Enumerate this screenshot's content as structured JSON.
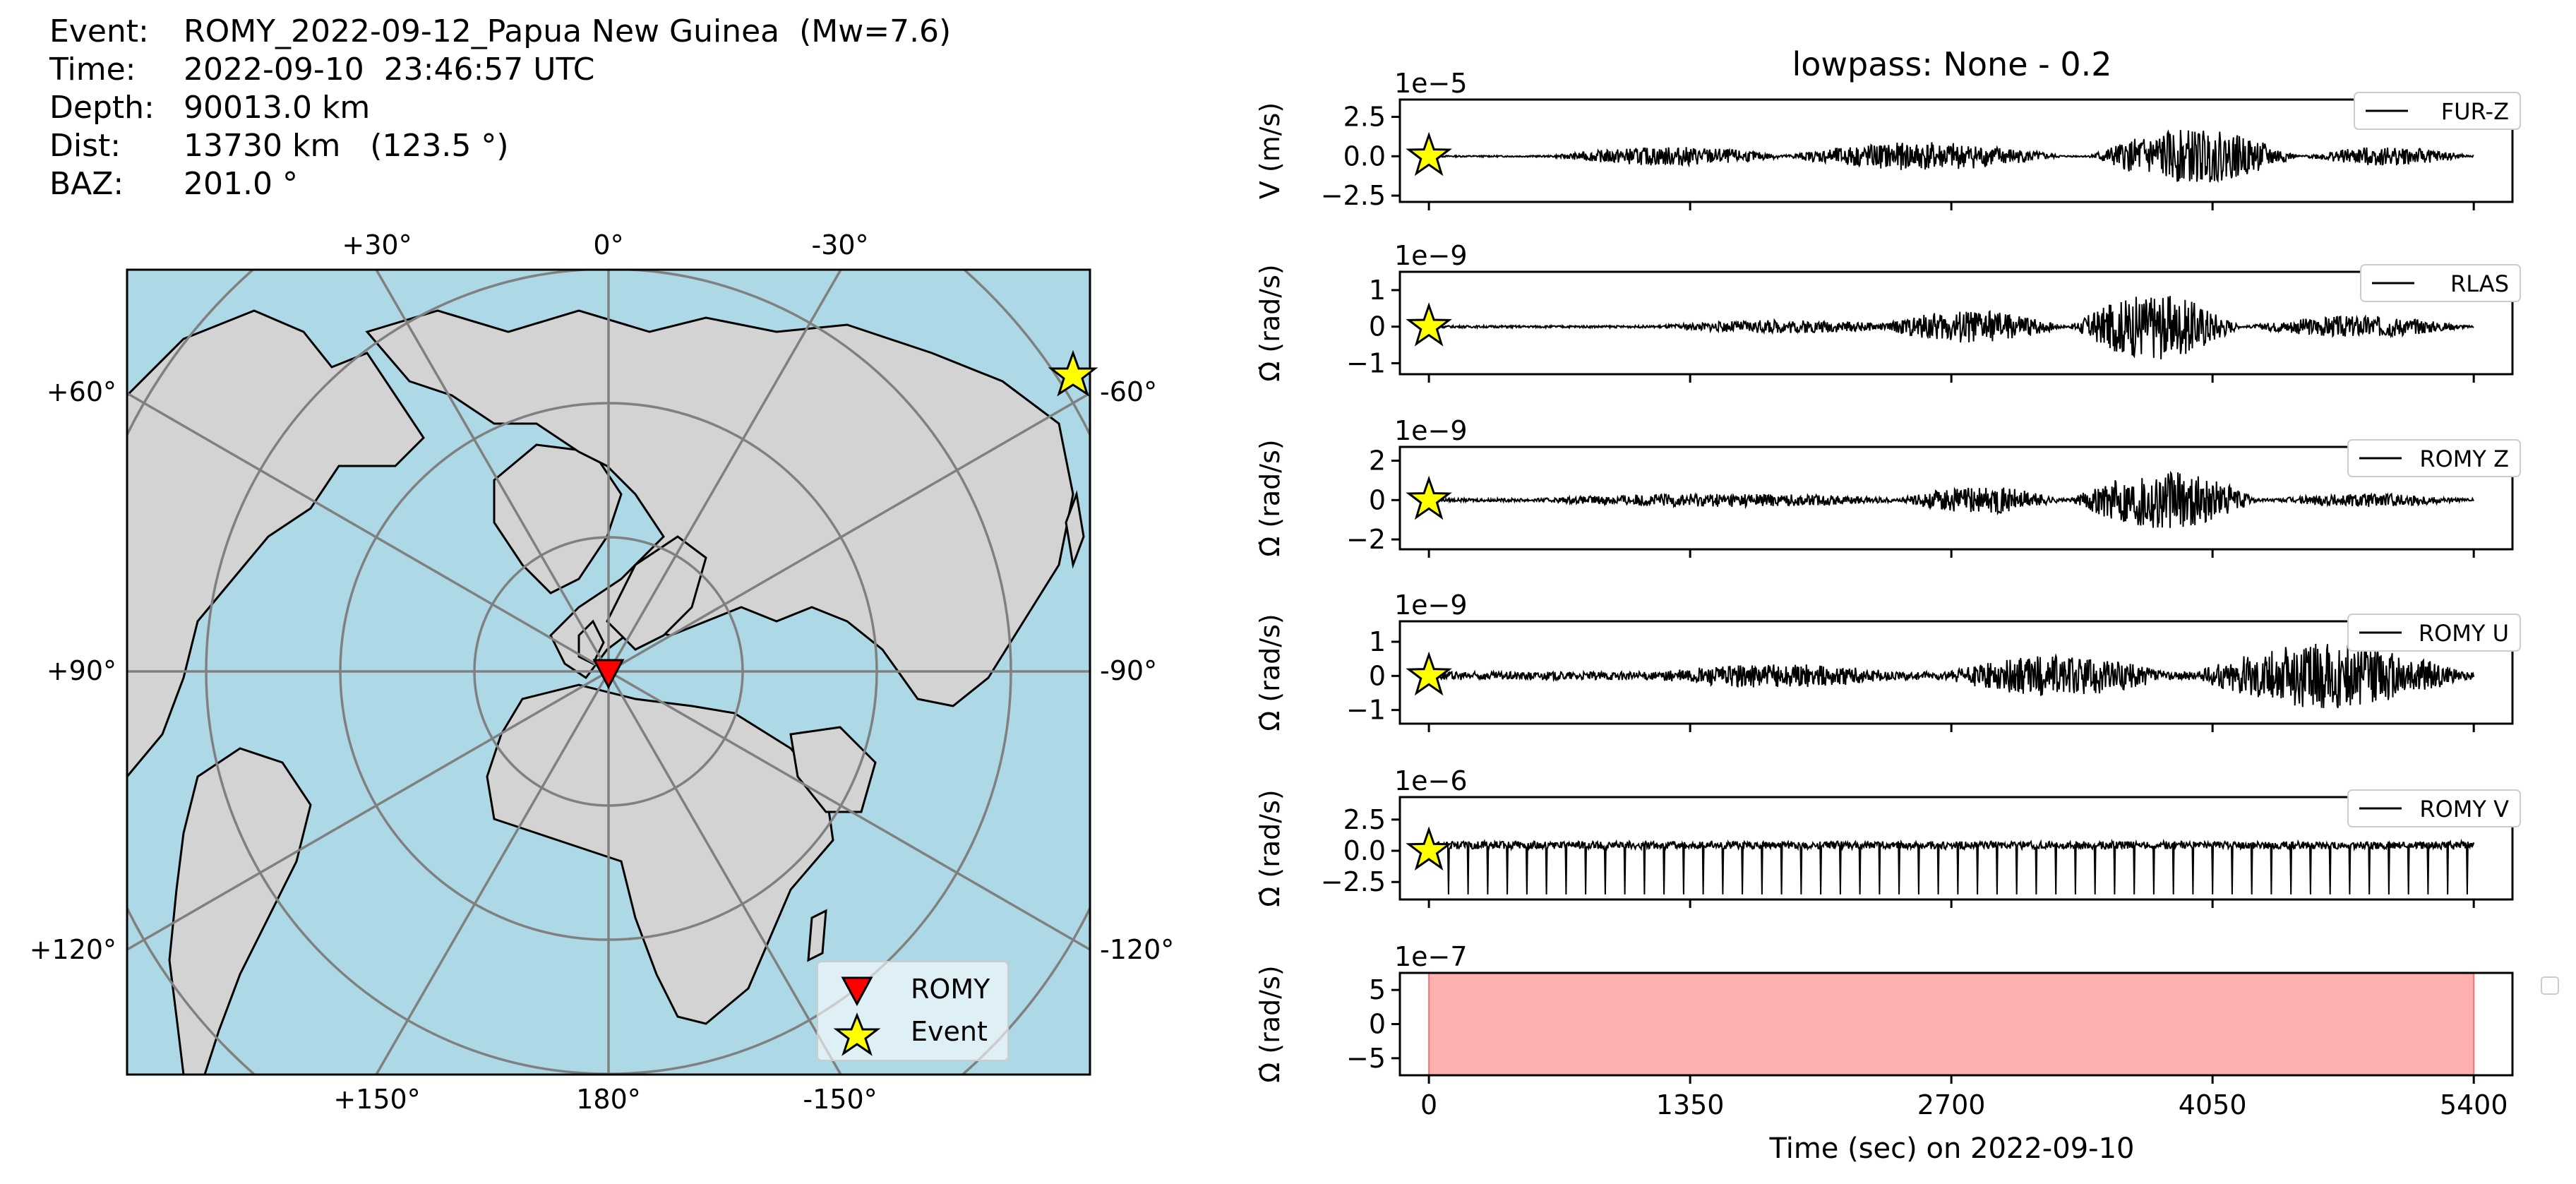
{
  "event_info": {
    "event_label": "Event:",
    "event_value": "ROMY_2022-09-12_Papua New Guinea  (Mw=7.6)",
    "time_label": "Time:",
    "time_value": "2022-09-10  23:46:57 UTC",
    "depth_label": "Depth:",
    "depth_value": "90013.0 km",
    "dist_label": "Dist:",
    "dist_value": "13730 km   (123.5 °)",
    "baz_label": "BAZ:",
    "baz_value": "201.0 °"
  },
  "map": {
    "top_labels": [
      "+30°",
      "0°",
      "-30°"
    ],
    "bottom_labels": [
      "+150°",
      "180°",
      "-150°"
    ],
    "left_labels": [
      "+60°",
      "+90°",
      "+120°"
    ],
    "right_labels": [
      "-60°",
      "-90°",
      "-120°"
    ],
    "legend": {
      "station": "ROMY",
      "event": "Event"
    },
    "colors": {
      "ocean": "#add8e6",
      "land": "#d3d3d3",
      "grid": "#808080",
      "station": "#ff0000",
      "event": "#ffff00"
    }
  },
  "chart_data": {
    "type": "line",
    "title": "lowpass: None - 0.2",
    "xlabel": "Time (sec) on 2022-09-10",
    "xlim": [
      -150,
      5600
    ],
    "xticks": [
      0,
      1350,
      2700,
      4050,
      5400
    ],
    "xtick_labels": [
      "0",
      "1350",
      "2700",
      "4050",
      "5400"
    ],
    "event_marker_x": 0,
    "panels": [
      {
        "name": "FUR-Z",
        "ylabel": "V (m/s)",
        "scale": "1e−5",
        "ylim": [
          -2.9,
          3.6
        ],
        "yticks": [
          -2.5,
          0,
          2.5
        ],
        "ytick_labels": [
          "−2.5",
          "0.0",
          "2.5"
        ],
        "noise": 0.05,
        "bursts": [
          [
            600,
            1900,
            0.6
          ],
          [
            1800,
            3300,
            0.9
          ],
          [
            3400,
            4500,
            1.7
          ],
          [
            4500,
            5400,
            0.6
          ]
        ]
      },
      {
        "name": "RLAS",
        "ylabel": "Ω̇ (rad/s)",
        "scale": "1e−9",
        "ylim": [
          -1.3,
          1.5
        ],
        "yticks": [
          -1,
          0,
          1
        ],
        "ytick_labels": [
          "−1",
          "0",
          "1"
        ],
        "noise": 0.03,
        "bursts": [
          [
            1100,
            2600,
            0.18
          ],
          [
            2300,
            3300,
            0.45
          ],
          [
            3300,
            4200,
            0.9
          ],
          [
            4200,
            5400,
            0.3
          ]
        ]
      },
      {
        "name": "ROMY Z",
        "ylabel": "Ω̇ (rad/s)",
        "scale": "1e−9",
        "ylim": [
          -2.5,
          2.7
        ],
        "yticks": [
          -2,
          0,
          2
        ],
        "ytick_labels": [
          "−2",
          "0",
          "2"
        ],
        "noise": 0.08,
        "bursts": [
          [
            400,
            2600,
            0.35
          ],
          [
            2400,
            3300,
            0.7
          ],
          [
            3300,
            4300,
            1.5
          ],
          [
            4300,
            5400,
            0.35
          ]
        ]
      },
      {
        "name": "ROMY U",
        "ylabel": "Ω̇ (rad/s)",
        "scale": "1e−9",
        "ylim": [
          -1.4,
          1.6
        ],
        "yticks": [
          -1,
          0,
          1
        ],
        "ytick_labels": [
          "−1",
          "0",
          "1"
        ],
        "noise": 0.12,
        "bursts": [
          [
            1000,
            2600,
            0.35
          ],
          [
            2600,
            3900,
            0.6
          ],
          [
            3900,
            5400,
            0.95
          ]
        ]
      },
      {
        "name": "ROMY V",
        "ylabel": "Ω̇ (rad/s)",
        "scale": "1e−6",
        "ylim": [
          -3.9,
          4.3
        ],
        "yticks": [
          -2.5,
          0,
          2.5
        ],
        "ytick_labels": [
          "−2.5",
          "0.0",
          "2.5"
        ],
        "noise": 0.25,
        "spike_every": 100,
        "spike_depth": -3.5
      },
      {
        "name": "",
        "ylabel": "Ω̇ (rad/s)",
        "scale": "1e−7",
        "ylim": [
          -7.5,
          7.5
        ],
        "yticks": [
          -5,
          0,
          5
        ],
        "ytick_labels": [
          "−5",
          "0",
          "5"
        ],
        "fill_between": [
          0,
          5400
        ],
        "fill_color": "#ffb0b0"
      }
    ]
  }
}
